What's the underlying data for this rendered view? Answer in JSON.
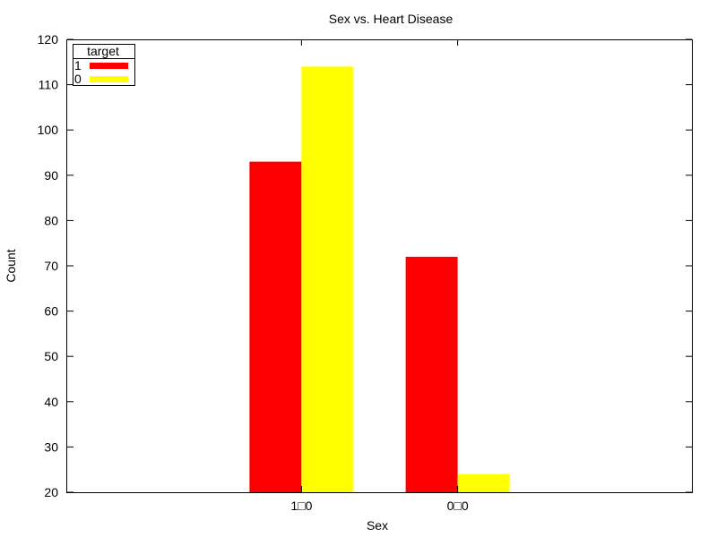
{
  "chart_data": {
    "type": "bar",
    "title": "Sex vs. Heart Disease",
    "xlabel": "Sex",
    "ylabel": "Count",
    "categories": [
      "1□0",
      "0□0"
    ],
    "series": [
      {
        "name": "1",
        "color": "#ff0000",
        "values": [
          93,
          72
        ]
      },
      {
        "name": "0",
        "color": "#ffff00",
        "values": [
          114,
          24
        ]
      }
    ],
    "legend": {
      "title": "target",
      "placement": "top-left"
    },
    "ylim": [
      20,
      120
    ],
    "yticks": [
      20,
      30,
      40,
      50,
      60,
      70,
      80,
      90,
      100,
      110,
      120
    ],
    "grid": false
  }
}
